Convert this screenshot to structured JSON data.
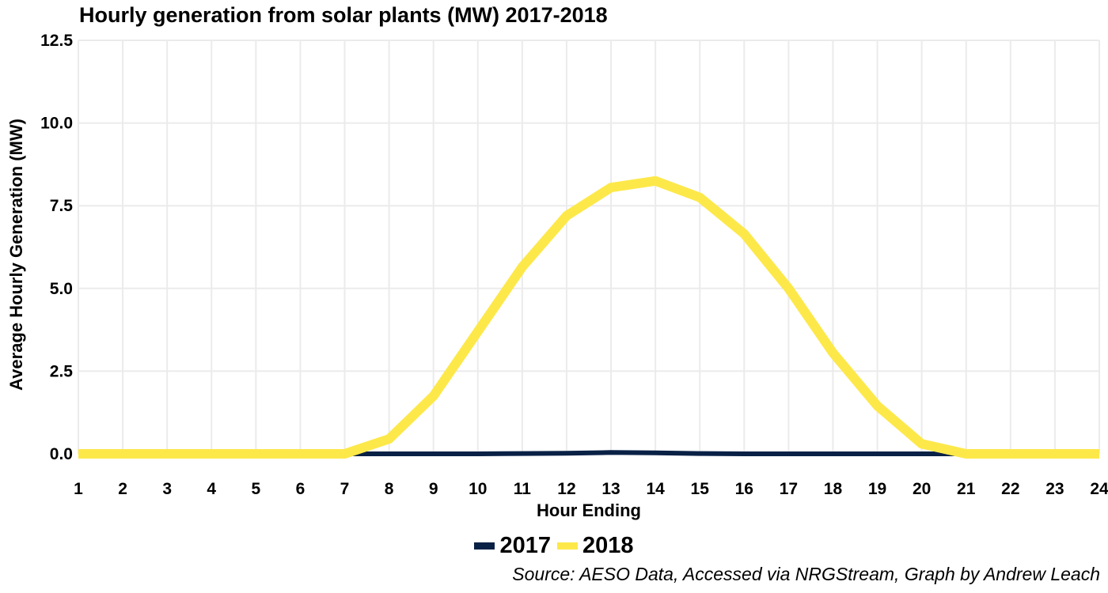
{
  "chart_data": {
    "type": "line",
    "title": "Hourly generation from solar plants (MW) 2017-2018",
    "xlabel": "Hour Ending",
    "ylabel": "Average Hourly Generation (MW)",
    "x": [
      1,
      2,
      3,
      4,
      5,
      6,
      7,
      8,
      9,
      10,
      11,
      12,
      13,
      14,
      15,
      16,
      17,
      18,
      19,
      20,
      21,
      22,
      23,
      24
    ],
    "xlim": [
      1,
      24
    ],
    "ylim": [
      0,
      12.5
    ],
    "yticks": [
      "0.0",
      "2.5",
      "5.0",
      "7.5",
      "10.0",
      "12.5"
    ],
    "ytick_values": [
      0,
      2.5,
      5,
      7.5,
      10,
      12.5
    ],
    "grid": true,
    "legend_position": "bottom-center",
    "series": [
      {
        "name": "2017",
        "color": "#0a2146",
        "values": [
          0,
          0,
          0,
          0,
          0,
          0,
          0,
          0,
          0,
          0,
          0.01,
          0.02,
          0.04,
          0.03,
          0.01,
          0,
          0,
          0,
          0,
          0,
          0,
          0,
          0,
          0
        ]
      },
      {
        "name": "2018",
        "color": "#fde84a",
        "values": [
          0,
          0,
          0,
          0,
          0,
          0,
          0,
          0.45,
          1.75,
          3.7,
          5.65,
          7.2,
          8.05,
          8.25,
          7.75,
          6.65,
          5.0,
          3.05,
          1.45,
          0.3,
          0,
          0,
          0,
          0
        ]
      }
    ],
    "source": "Source: AESO Data, Accessed via NRGStream, Graph by Andrew Leach"
  }
}
